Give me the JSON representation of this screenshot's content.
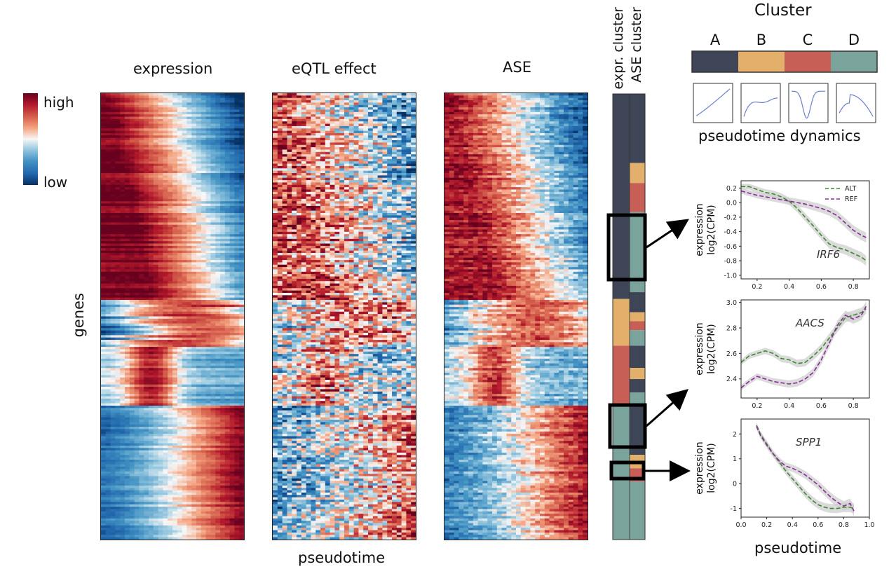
{
  "labels": {
    "expression": "expression",
    "eqtl_effect": "eQTL effect",
    "ase": "ASE",
    "genes": "genes",
    "pseudotime_bottom": "pseudotime",
    "pseudotime_right": "pseudotime",
    "expr_cluster": "expr. cluster",
    "ase_cluster": "ASE cluster",
    "cluster_title": "Cluster",
    "pseudotime_dynamics": "pseudotime dynamics",
    "colorbar_high": "high",
    "colorbar_low": "low"
  },
  "clusters": [
    {
      "name": "A",
      "color": "#3e4556"
    },
    {
      "name": "B",
      "color": "#e2b06b"
    },
    {
      "name": "C",
      "color": "#c85f57"
    },
    {
      "name": "D",
      "color": "#7aa39c"
    }
  ],
  "colors": {
    "high": "#a0192d",
    "mid": "#f4f1f0",
    "low": "#25569b"
  },
  "cluster_bar": {
    "expr": [
      {
        "cluster": "A",
        "from": 0.0,
        "to": 0.46
      },
      {
        "cluster": "B",
        "from": 0.46,
        "to": 0.565
      },
      {
        "cluster": "C",
        "from": 0.565,
        "to": 0.695
      },
      {
        "cluster": "D",
        "from": 0.695,
        "to": 1.0
      }
    ],
    "ase": [
      {
        "cluster": "A",
        "from": 0.0,
        "to": 0.155
      },
      {
        "cluster": "B",
        "from": 0.155,
        "to": 0.2
      },
      {
        "cluster": "C",
        "from": 0.2,
        "to": 0.265
      },
      {
        "cluster": "D",
        "from": 0.265,
        "to": 0.445
      },
      {
        "cluster": "A",
        "from": 0.445,
        "to": 0.49
      },
      {
        "cluster": "B",
        "from": 0.49,
        "to": 0.51
      },
      {
        "cluster": "C",
        "from": 0.51,
        "to": 0.53
      },
      {
        "cluster": "D",
        "from": 0.53,
        "to": 0.565
      },
      {
        "cluster": "A",
        "from": 0.565,
        "to": 0.615
      },
      {
        "cluster": "B",
        "from": 0.615,
        "to": 0.64
      },
      {
        "cluster": "A",
        "from": 0.64,
        "to": 0.67
      },
      {
        "cluster": "D",
        "from": 0.67,
        "to": 0.695
      },
      {
        "cluster": "A",
        "from": 0.695,
        "to": 0.81
      },
      {
        "cluster": "B",
        "from": 0.81,
        "to": 0.84
      },
      {
        "cluster": "C",
        "from": 0.84,
        "to": 0.87
      },
      {
        "cluster": "D",
        "from": 0.87,
        "to": 1.0
      }
    ]
  },
  "chart_data": [
    {
      "type": "heatmap",
      "title": "expression",
      "ylabel": "genes",
      "xlabel": "pseudotime",
      "colorscale": [
        "low",
        "high"
      ]
    },
    {
      "type": "heatmap",
      "title": "eQTL effect",
      "xlabel": "pseudotime"
    },
    {
      "type": "heatmap",
      "title": "ASE",
      "xlabel": "pseudotime"
    },
    {
      "type": "line",
      "gene": "IRF6",
      "ylabel": "expression\nlog2(CPM)",
      "ylabel_line1": "expression",
      "ylabel_line2": "log2(CPM)",
      "xlim": [
        0.1,
        0.9
      ],
      "ylim": [
        -1.05,
        0.3
      ],
      "xticks": [
        "0.2",
        "0.4",
        "0.6",
        "0.8"
      ],
      "xtick_values": [
        0.2,
        0.4,
        0.6,
        0.8
      ],
      "yticks": [
        "0.2",
        "0.0",
        "-0.2",
        "-0.4",
        "-0.6",
        "-0.8",
        "-1.0"
      ],
      "ytick_values": [
        0.2,
        0.0,
        -0.2,
        -0.4,
        -0.6,
        -0.8,
        -1.0
      ],
      "legend": [
        "ALT",
        "REF"
      ],
      "series": [
        {
          "name": "ALT",
          "color": "#3d8a2e",
          "x": [
            0.1,
            0.15,
            0.2,
            0.25,
            0.3,
            0.35,
            0.4,
            0.45,
            0.5,
            0.55,
            0.6,
            0.65,
            0.7,
            0.75,
            0.8,
            0.85,
            0.88
          ],
          "y": [
            0.22,
            0.22,
            0.18,
            0.14,
            0.12,
            0.08,
            0.02,
            -0.08,
            -0.2,
            -0.32,
            -0.45,
            -0.57,
            -0.62,
            -0.65,
            -0.7,
            -0.75,
            -0.8
          ]
        },
        {
          "name": "REF",
          "color": "#8a2a9a",
          "x": [
            0.1,
            0.15,
            0.2,
            0.25,
            0.3,
            0.35,
            0.4,
            0.45,
            0.5,
            0.55,
            0.6,
            0.65,
            0.7,
            0.75,
            0.8,
            0.85,
            0.88
          ],
          "y": [
            0.16,
            0.13,
            0.1,
            0.08,
            0.06,
            0.04,
            0.02,
            0.0,
            -0.02,
            -0.05,
            -0.08,
            -0.12,
            -0.18,
            -0.28,
            -0.38,
            -0.45,
            -0.48
          ]
        }
      ]
    },
    {
      "type": "line",
      "gene": "AACS",
      "ylabel_line1": "expression",
      "ylabel_line2": "log2(CPM)",
      "xlim": [
        0.1,
        0.9
      ],
      "ylim": [
        2.25,
        3.02
      ],
      "xticks": [
        "0.2",
        "0.4",
        "0.6",
        "0.8"
      ],
      "xtick_values": [
        0.2,
        0.4,
        0.6,
        0.8
      ],
      "yticks": [
        "3.0",
        "2.8",
        "2.6",
        "2.4"
      ],
      "ytick_values": [
        3.0,
        2.8,
        2.6,
        2.4
      ],
      "series": [
        {
          "name": "ALT",
          "color": "#3d8a2e",
          "x": [
            0.1,
            0.15,
            0.2,
            0.25,
            0.3,
            0.35,
            0.4,
            0.45,
            0.5,
            0.55,
            0.6,
            0.65,
            0.7,
            0.75,
            0.8,
            0.85,
            0.88
          ],
          "y": [
            2.53,
            2.58,
            2.6,
            2.62,
            2.6,
            2.56,
            2.55,
            2.52,
            2.53,
            2.58,
            2.64,
            2.72,
            2.8,
            2.88,
            2.9,
            2.92,
            2.95
          ]
        },
        {
          "name": "REF",
          "color": "#8a2a9a",
          "x": [
            0.1,
            0.15,
            0.2,
            0.25,
            0.3,
            0.35,
            0.4,
            0.45,
            0.5,
            0.55,
            0.6,
            0.65,
            0.7,
            0.75,
            0.8,
            0.85,
            0.88
          ],
          "y": [
            2.33,
            2.38,
            2.42,
            2.4,
            2.38,
            2.37,
            2.36,
            2.37,
            2.4,
            2.45,
            2.55,
            2.68,
            2.82,
            2.9,
            2.87,
            2.9,
            2.97
          ]
        }
      ]
    },
    {
      "type": "line",
      "gene": "SPP1",
      "ylabel_line1": "expression",
      "ylabel_line2": "log2(CPM)",
      "xlabel": "pseudotime",
      "xlim": [
        0.0,
        1.0
      ],
      "ylim": [
        -1.35,
        2.6
      ],
      "xticks": [
        "0.0",
        "0.2",
        "0.4",
        "0.6",
        "0.8",
        "1.0"
      ],
      "xtick_values": [
        0.0,
        0.2,
        0.4,
        0.6,
        0.8,
        1.0
      ],
      "yticks": [
        "2",
        "1",
        "0",
        "-1"
      ],
      "ytick_values": [
        2,
        1,
        0,
        -1
      ],
      "series": [
        {
          "name": "ALT",
          "color": "#3d8a2e",
          "x": [
            0.12,
            0.15,
            0.2,
            0.25,
            0.3,
            0.35,
            0.4,
            0.45,
            0.5,
            0.55,
            0.6,
            0.65,
            0.7,
            0.75,
            0.8,
            0.85,
            0.88
          ],
          "y": [
            2.35,
            2.0,
            1.6,
            1.2,
            0.85,
            0.5,
            0.2,
            -0.1,
            -0.4,
            -0.65,
            -0.85,
            -0.95,
            -1.0,
            -1.0,
            -0.95,
            -0.95,
            -1.0
          ]
        },
        {
          "name": "REF",
          "color": "#8a2a9a",
          "x": [
            0.12,
            0.15,
            0.2,
            0.25,
            0.3,
            0.35,
            0.4,
            0.45,
            0.5,
            0.55,
            0.6,
            0.65,
            0.7,
            0.75,
            0.8,
            0.85,
            0.88
          ],
          "y": [
            2.3,
            1.95,
            1.55,
            1.2,
            0.9,
            0.7,
            0.62,
            0.5,
            0.35,
            0.15,
            -0.05,
            -0.3,
            -0.55,
            -0.75,
            -0.9,
            -0.8,
            -1.1
          ]
        }
      ]
    }
  ]
}
